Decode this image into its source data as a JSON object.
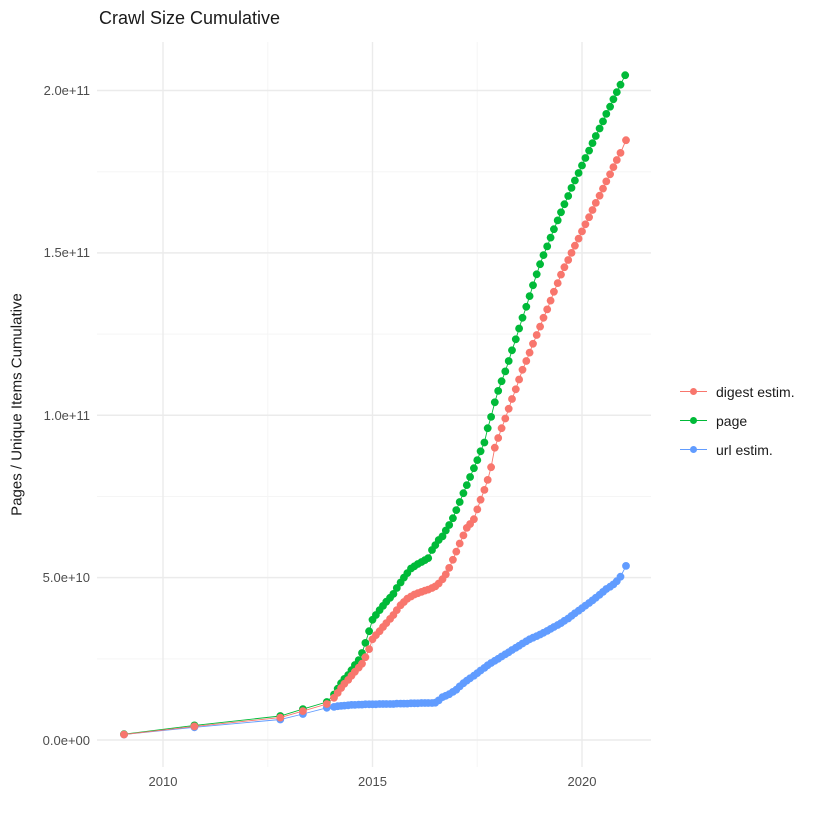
{
  "title": "Crawl Size Cumulative",
  "y_axis": {
    "title": "Pages / Unique Items Cumulative",
    "tick_labels": [
      "0.0e+00",
      "5.0e+10",
      "1.0e+11",
      "1.5e+11",
      "2.0e+11"
    ],
    "tick_values_billions": [
      0,
      50,
      100,
      150,
      200
    ],
    "minor_values_billions": [
      25,
      75,
      125,
      175
    ]
  },
  "x_axis": {
    "tick_labels": [
      "2010",
      "2015",
      "2020"
    ],
    "tick_values": [
      2010,
      2015,
      2020
    ],
    "minor_values": [
      2012.5,
      2017.5
    ]
  },
  "legend": {
    "items": [
      {
        "label": "digest estim.",
        "color": "#F8766D"
      },
      {
        "label": "page",
        "color": "#00BA38"
      },
      {
        "label": "url estim.",
        "color": "#619CFF"
      }
    ]
  },
  "colors": {
    "digest": "#F8766D",
    "page": "#00BA38",
    "url": "#619CFF",
    "grid_major": "#ebebeb",
    "grid_minor": "#f5f5f5",
    "axis_text": "#4d4d4d"
  },
  "chart_data": {
    "type": "line",
    "title": "Crawl Size Cumulative",
    "xlabel": "",
    "ylabel": "Pages / Unique Items Cumulative",
    "values_unit": "items, stored as billions (multiply by 1e9)",
    "x_range_years": [
      2008.4,
      2021.65
    ],
    "y_range_billions": [
      -8,
      215
    ],
    "grid": true,
    "legend_position": "right",
    "series": [
      {
        "name": "digest estim.",
        "color": "#F8766D",
        "points": [
          [
            2009.07,
            1.7
          ],
          [
            2010.75,
            4.2
          ],
          [
            2012.8,
            6.9
          ],
          [
            2013.34,
            8.9
          ],
          [
            2013.91,
            11.1
          ],
          [
            2014.08,
            13
          ],
          [
            2014.17,
            14.5
          ],
          [
            2014.25,
            16
          ],
          [
            2014.33,
            17.3
          ],
          [
            2014.42,
            18.5
          ],
          [
            2014.5,
            19.8
          ],
          [
            2014.58,
            21
          ],
          [
            2014.67,
            22.3
          ],
          [
            2014.75,
            23.5
          ],
          [
            2014.83,
            25.5
          ],
          [
            2014.92,
            28
          ],
          [
            2015,
            31
          ],
          [
            2015.08,
            32.3
          ],
          [
            2015.17,
            33.5
          ],
          [
            2015.25,
            34.8
          ],
          [
            2015.33,
            36
          ],
          [
            2015.42,
            37.3
          ],
          [
            2015.5,
            38.5
          ],
          [
            2015.58,
            40
          ],
          [
            2015.67,
            41.5
          ],
          [
            2015.75,
            42.5
          ],
          [
            2015.83,
            43.5
          ],
          [
            2015.92,
            44.2
          ],
          [
            2016,
            44.8
          ],
          [
            2016.08,
            45.2
          ],
          [
            2016.17,
            45.6
          ],
          [
            2016.25,
            46
          ],
          [
            2016.33,
            46.3
          ],
          [
            2016.42,
            46.8
          ],
          [
            2016.5,
            47.3
          ],
          [
            2016.58,
            48.2
          ],
          [
            2016.67,
            49.5
          ],
          [
            2016.75,
            51
          ],
          [
            2016.83,
            53
          ],
          [
            2016.92,
            55.5
          ],
          [
            2017,
            58
          ],
          [
            2017.08,
            60.5
          ],
          [
            2017.17,
            63
          ],
          [
            2017.25,
            65.3
          ],
          [
            2017.33,
            66.5
          ],
          [
            2017.42,
            68
          ],
          [
            2017.5,
            71
          ],
          [
            2017.58,
            74
          ],
          [
            2017.67,
            77
          ],
          [
            2017.75,
            80.1
          ],
          [
            2017.83,
            84
          ],
          [
            2017.92,
            90
          ],
          [
            2018,
            93
          ],
          [
            2018.08,
            96
          ],
          [
            2018.17,
            99
          ],
          [
            2018.25,
            102
          ],
          [
            2018.33,
            105
          ],
          [
            2018.42,
            108
          ],
          [
            2018.5,
            111
          ],
          [
            2018.58,
            114
          ],
          [
            2018.67,
            116.7
          ],
          [
            2018.75,
            119.3
          ],
          [
            2018.83,
            122
          ],
          [
            2018.92,
            124.7
          ],
          [
            2019,
            127.3
          ],
          [
            2019.08,
            130
          ],
          [
            2019.17,
            132.6
          ],
          [
            2019.25,
            135.3
          ],
          [
            2019.33,
            138
          ],
          [
            2019.42,
            140.7
          ],
          [
            2019.5,
            143.3
          ],
          [
            2019.58,
            145.6
          ],
          [
            2019.67,
            147.8
          ],
          [
            2019.75,
            150
          ],
          [
            2019.83,
            152.2
          ],
          [
            2019.92,
            154.4
          ],
          [
            2020,
            156.6
          ],
          [
            2020.08,
            158.8
          ],
          [
            2020.17,
            161
          ],
          [
            2020.25,
            163.2
          ],
          [
            2020.33,
            165.4
          ],
          [
            2020.42,
            167.6
          ],
          [
            2020.5,
            169.8
          ],
          [
            2020.58,
            172
          ],
          [
            2020.67,
            174.2
          ],
          [
            2020.75,
            176.4
          ],
          [
            2020.83,
            178.6
          ],
          [
            2020.92,
            180.8
          ],
          [
            2021.05,
            184.7
          ]
        ]
      },
      {
        "name": "page",
        "color": "#00BA38",
        "points": [
          [
            2009.07,
            1.8
          ],
          [
            2010.75,
            4.5
          ],
          [
            2012.8,
            7.4
          ],
          [
            2013.34,
            9.5
          ],
          [
            2013.91,
            11.7
          ],
          [
            2014.08,
            14
          ],
          [
            2014.17,
            15.8
          ],
          [
            2014.25,
            17.5
          ],
          [
            2014.33,
            18.8
          ],
          [
            2014.42,
            20
          ],
          [
            2014.5,
            21.5
          ],
          [
            2014.58,
            23.1
          ],
          [
            2014.67,
            24.6
          ],
          [
            2014.75,
            26.8
          ],
          [
            2014.83,
            29.9
          ],
          [
            2014.92,
            33.5
          ],
          [
            2015,
            37
          ],
          [
            2015.08,
            38.5
          ],
          [
            2015.17,
            40
          ],
          [
            2015.25,
            41.3
          ],
          [
            2015.33,
            42.6
          ],
          [
            2015.42,
            43.8
          ],
          [
            2015.5,
            45
          ],
          [
            2015.58,
            46.8
          ],
          [
            2015.67,
            48.5
          ],
          [
            2015.75,
            50
          ],
          [
            2015.83,
            51.4
          ],
          [
            2015.92,
            52.8
          ],
          [
            2016,
            53.5
          ],
          [
            2016.08,
            54.2
          ],
          [
            2016.17,
            54.8
          ],
          [
            2016.25,
            55.4
          ],
          [
            2016.33,
            56
          ],
          [
            2016.42,
            58.5
          ],
          [
            2016.5,
            60
          ],
          [
            2016.58,
            61.6
          ],
          [
            2016.67,
            62.7
          ],
          [
            2016.75,
            64.5
          ],
          [
            2016.83,
            66.2
          ],
          [
            2016.92,
            68.3
          ],
          [
            2017,
            70.8
          ],
          [
            2017.08,
            73.3
          ],
          [
            2017.17,
            76
          ],
          [
            2017.25,
            78.5
          ],
          [
            2017.33,
            81
          ],
          [
            2017.42,
            83.7
          ],
          [
            2017.5,
            86.2
          ],
          [
            2017.58,
            88.9
          ],
          [
            2017.67,
            91.6
          ],
          [
            2017.75,
            96
          ],
          [
            2017.83,
            99.5
          ],
          [
            2017.92,
            104
          ],
          [
            2018,
            107.5
          ],
          [
            2018.08,
            110.5
          ],
          [
            2018.17,
            113.5
          ],
          [
            2018.25,
            116.7
          ],
          [
            2018.33,
            120
          ],
          [
            2018.42,
            123.4
          ],
          [
            2018.5,
            126.7
          ],
          [
            2018.58,
            130
          ],
          [
            2018.67,
            133.4
          ],
          [
            2018.75,
            136.7
          ],
          [
            2018.83,
            140
          ],
          [
            2018.92,
            143.4
          ],
          [
            2019,
            146.5
          ],
          [
            2019.08,
            149.3
          ],
          [
            2019.17,
            152
          ],
          [
            2019.25,
            154.7
          ],
          [
            2019.33,
            157.3
          ],
          [
            2019.42,
            160
          ],
          [
            2019.5,
            162.5
          ],
          [
            2019.58,
            165
          ],
          [
            2019.67,
            167.5
          ],
          [
            2019.75,
            170
          ],
          [
            2019.83,
            172.3
          ],
          [
            2019.92,
            174.6
          ],
          [
            2020,
            176.9
          ],
          [
            2020.08,
            179.2
          ],
          [
            2020.17,
            181.5
          ],
          [
            2020.25,
            183.8
          ],
          [
            2020.33,
            186
          ],
          [
            2020.42,
            188.3
          ],
          [
            2020.5,
            190.5
          ],
          [
            2020.58,
            192.8
          ],
          [
            2020.67,
            195
          ],
          [
            2020.75,
            197.3
          ],
          [
            2020.83,
            199.5
          ],
          [
            2020.92,
            201.8
          ],
          [
            2021.03,
            204.7
          ]
        ]
      },
      {
        "name": "url estim.",
        "color": "#619CFF",
        "points": [
          [
            2009.07,
            1.7
          ],
          [
            2010.75,
            3.9
          ],
          [
            2012.8,
            6.3
          ],
          [
            2013.34,
            8
          ],
          [
            2013.91,
            9.9
          ],
          [
            2014.08,
            10.2
          ],
          [
            2014.17,
            10.4
          ],
          [
            2014.25,
            10.5
          ],
          [
            2014.33,
            10.6
          ],
          [
            2014.42,
            10.7
          ],
          [
            2014.5,
            10.8
          ],
          [
            2014.58,
            10.8
          ],
          [
            2014.67,
            10.9
          ],
          [
            2014.75,
            10.9
          ],
          [
            2014.83,
            11
          ],
          [
            2014.92,
            11
          ],
          [
            2015,
            11
          ],
          [
            2015.08,
            11
          ],
          [
            2015.17,
            11.1
          ],
          [
            2015.25,
            11.1
          ],
          [
            2015.33,
            11.1
          ],
          [
            2015.42,
            11.1
          ],
          [
            2015.5,
            11.1
          ],
          [
            2015.58,
            11.2
          ],
          [
            2015.67,
            11.2
          ],
          [
            2015.75,
            11.2
          ],
          [
            2015.83,
            11.2
          ],
          [
            2015.92,
            11.3
          ],
          [
            2016,
            11.3
          ],
          [
            2016.08,
            11.3
          ],
          [
            2016.17,
            11.4
          ],
          [
            2016.25,
            11.4
          ],
          [
            2016.33,
            11.4
          ],
          [
            2016.42,
            11.4
          ],
          [
            2016.5,
            11.5
          ],
          [
            2016.58,
            12.2
          ],
          [
            2016.67,
            13.2
          ],
          [
            2016.75,
            13.6
          ],
          [
            2016.83,
            14.1
          ],
          [
            2016.92,
            14.8
          ],
          [
            2017,
            15.5
          ],
          [
            2017.08,
            16.5
          ],
          [
            2017.17,
            17.5
          ],
          [
            2017.25,
            18.3
          ],
          [
            2017.33,
            19
          ],
          [
            2017.42,
            19.8
          ],
          [
            2017.5,
            20.6
          ],
          [
            2017.58,
            21.4
          ],
          [
            2017.67,
            22.2
          ],
          [
            2017.75,
            23
          ],
          [
            2017.83,
            23.7
          ],
          [
            2017.92,
            24.4
          ],
          [
            2018,
            25
          ],
          [
            2018.08,
            25.7
          ],
          [
            2018.17,
            26.4
          ],
          [
            2018.25,
            27
          ],
          [
            2018.33,
            27.7
          ],
          [
            2018.42,
            28.4
          ],
          [
            2018.5,
            29
          ],
          [
            2018.58,
            29.7
          ],
          [
            2018.67,
            30.4
          ],
          [
            2018.75,
            31
          ],
          [
            2018.83,
            31.5
          ],
          [
            2018.92,
            32
          ],
          [
            2019,
            32.5
          ],
          [
            2019.08,
            33
          ],
          [
            2019.17,
            33.6
          ],
          [
            2019.25,
            34.2
          ],
          [
            2019.33,
            34.8
          ],
          [
            2019.42,
            35.4
          ],
          [
            2019.5,
            36
          ],
          [
            2019.58,
            36.7
          ],
          [
            2019.67,
            37.4
          ],
          [
            2019.75,
            38.2
          ],
          [
            2019.83,
            39
          ],
          [
            2019.92,
            39.8
          ],
          [
            2020,
            40.6
          ],
          [
            2020.08,
            41.4
          ],
          [
            2020.17,
            42.2
          ],
          [
            2020.25,
            43
          ],
          [
            2020.33,
            43.8
          ],
          [
            2020.42,
            44.7
          ],
          [
            2020.5,
            45.6
          ],
          [
            2020.58,
            46.5
          ],
          [
            2020.67,
            47.2
          ],
          [
            2020.75,
            47.9
          ],
          [
            2020.83,
            48.9
          ],
          [
            2020.92,
            50.3
          ],
          [
            2021.05,
            53.6
          ]
        ]
      }
    ]
  }
}
